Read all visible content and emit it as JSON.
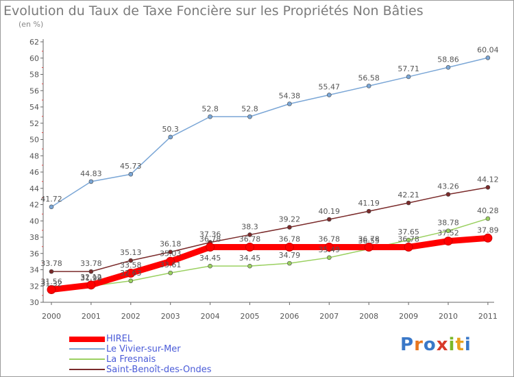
{
  "title": "Evolution du Taux de Taxe Foncière sur les Propriétés Non Bâties",
  "unit_label": "(en %)",
  "logo": {
    "text": "Proxiti",
    "letters": [
      "P",
      "r",
      "o",
      "x",
      "i",
      "t",
      "i"
    ],
    "colors": [
      "#3a78c8",
      "#e8771e",
      "#3a78c8",
      "#d83a2a",
      "#7ab828",
      "#e8a01e",
      "#3a78c8"
    ]
  },
  "chart_data": {
    "type": "line",
    "title": "Evolution du Taux de Taxe Foncière sur les Propriétés Non Bâties",
    "ylabel": "(en %)",
    "xlabel": "",
    "x": [
      "2000",
      "2001",
      "2002",
      "2003",
      "2004",
      "2005",
      "2006",
      "2007",
      "2008",
      "2009",
      "2010",
      "2011"
    ],
    "ylim": [
      30,
      62
    ],
    "yticks": [
      30,
      32,
      34,
      36,
      38,
      40,
      42,
      44,
      46,
      48,
      50,
      52,
      54,
      56,
      58,
      60,
      62
    ],
    "grid": false,
    "legend_position": "bottom-left",
    "series": [
      {
        "name": "HIREL",
        "color": "#ff0000",
        "values": [
          31.56,
          32.12,
          33.58,
          35.03,
          36.78,
          36.78,
          36.78,
          36.78,
          36.78,
          36.78,
          37.52,
          37.89
        ],
        "labels": [
          "31.56",
          "32.12",
          "33.58",
          "35.03",
          "36.78",
          "36.78",
          "36.78",
          "36.78",
          "36.78",
          "36.78",
          "37.52",
          "37.89"
        ]
      },
      {
        "name": "Le Vivier-sur-Mer",
        "color": "#7aa6d6",
        "values": [
          41.72,
          44.83,
          45.73,
          50.3,
          52.8,
          52.8,
          54.38,
          55.47,
          56.58,
          57.71,
          58.86,
          60.04
        ],
        "labels": [
          "41.72",
          "44.83",
          "45.73",
          "50.3",
          "52.8",
          "52.8",
          "54.38",
          "55.47",
          "56.58",
          "57.71",
          "58.86",
          "60.04"
        ]
      },
      {
        "name": "La Fresnais",
        "color": "#9ad060",
        "values": [
          31.32,
          31.99,
          32.63,
          33.61,
          34.45,
          34.45,
          34.79,
          35.49,
          36.55,
          37.65,
          38.78,
          40.28
        ],
        "labels": [
          "31.32",
          "31.99",
          "32.63",
          "33.61",
          "34.45",
          "34.45",
          "34.79",
          "35.49",
          "36.55",
          "37.65",
          "38.78",
          "40.28"
        ]
      },
      {
        "name": "Saint-Benoît-des-Ondes",
        "color": "#7a2a2a",
        "values": [
          33.78,
          33.78,
          35.13,
          36.18,
          37.36,
          38.3,
          39.22,
          40.19,
          41.19,
          42.21,
          43.26,
          44.12
        ],
        "labels": [
          "33.78",
          "33.78",
          "35.13",
          "36.18",
          "37.36",
          "38.3",
          "39.22",
          "40.19",
          "41.19",
          "42.21",
          "43.26",
          "44.12"
        ]
      }
    ]
  }
}
